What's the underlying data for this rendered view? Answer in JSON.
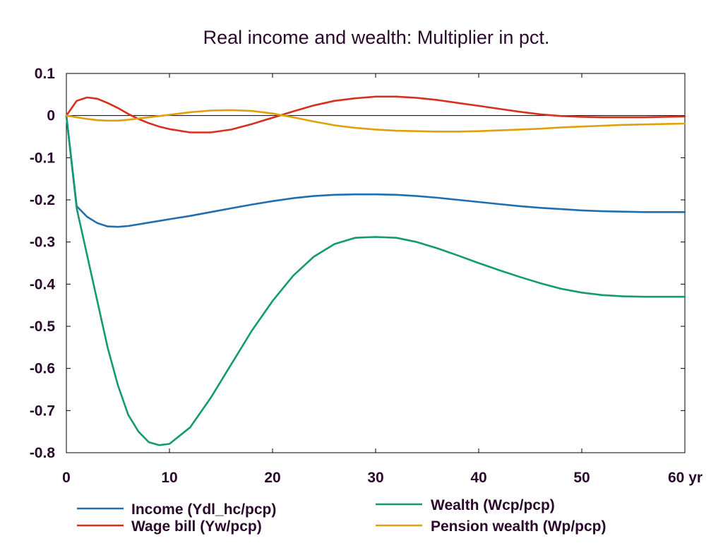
{
  "chart_data": {
    "type": "line",
    "title": "Real income and wealth: Multiplier in pct.",
    "xlabel": "",
    "ylabel": "",
    "x_unit_label": "yr",
    "xlim": [
      0,
      60
    ],
    "ylim": [
      -0.8,
      0.1
    ],
    "x_ticks": [
      0,
      10,
      20,
      30,
      40,
      50,
      60
    ],
    "x_tick_labels": [
      "0",
      "10",
      "20",
      "30",
      "40",
      "50",
      "60 yr"
    ],
    "y_ticks": [
      0.1,
      0,
      -0.1,
      -0.2,
      -0.3,
      -0.4,
      -0.5,
      -0.6,
      -0.7,
      -0.8
    ],
    "y_tick_labels": [
      "0.1",
      "0",
      "-0.1",
      "-0.2",
      "-0.3",
      "-0.4",
      "-0.5",
      "-0.6",
      "-0.7",
      "-0.8"
    ],
    "grid": false,
    "zero_line": true,
    "legend_position": "bottom",
    "x": [
      0,
      1,
      2,
      3,
      4,
      5,
      6,
      7,
      8,
      9,
      10,
      12,
      14,
      16,
      18,
      20,
      22,
      24,
      26,
      28,
      30,
      32,
      34,
      36,
      38,
      40,
      42,
      44,
      46,
      48,
      50,
      52,
      54,
      56,
      58,
      60
    ],
    "series": [
      {
        "name": "Income (Ydl_hc/pcp)",
        "color": "#1f6fb0",
        "values": [
          0,
          -0.215,
          -0.24,
          -0.255,
          -0.263,
          -0.264,
          -0.262,
          -0.258,
          -0.254,
          -0.25,
          -0.246,
          -0.238,
          -0.229,
          -0.22,
          -0.211,
          -0.203,
          -0.196,
          -0.191,
          -0.188,
          -0.187,
          -0.187,
          -0.188,
          -0.191,
          -0.195,
          -0.2,
          -0.205,
          -0.21,
          -0.215,
          -0.219,
          -0.222,
          -0.225,
          -0.227,
          -0.228,
          -0.229,
          -0.229,
          -0.229
        ]
      },
      {
        "name": "Wage bill (Yw/pcp)",
        "color": "#d7301f",
        "values": [
          0,
          0.035,
          0.043,
          0.04,
          0.03,
          0.018,
          0.004,
          -0.008,
          -0.018,
          -0.026,
          -0.032,
          -0.04,
          -0.04,
          -0.033,
          -0.02,
          -0.005,
          0.01,
          0.024,
          0.035,
          0.041,
          0.045,
          0.045,
          0.042,
          0.037,
          0.03,
          0.023,
          0.016,
          0.009,
          0.003,
          -0.001,
          -0.003,
          -0.004,
          -0.004,
          -0.004,
          -0.003,
          -0.002
        ]
      },
      {
        "name": "Wealth (Wcp/pcp)",
        "color": "#129a72",
        "values": [
          0,
          -0.22,
          -0.33,
          -0.44,
          -0.55,
          -0.64,
          -0.71,
          -0.75,
          -0.775,
          -0.782,
          -0.779,
          -0.74,
          -0.67,
          -0.59,
          -0.51,
          -0.44,
          -0.38,
          -0.335,
          -0.305,
          -0.29,
          -0.288,
          -0.29,
          -0.3,
          -0.315,
          -0.332,
          -0.35,
          -0.367,
          -0.383,
          -0.398,
          -0.411,
          -0.42,
          -0.426,
          -0.429,
          -0.43,
          -0.43,
          -0.43
        ]
      },
      {
        "name": "Pension wealth (Wp/pcp)",
        "color": "#e0a00c",
        "values": [
          0,
          -0.004,
          -0.008,
          -0.011,
          -0.012,
          -0.012,
          -0.01,
          -0.007,
          -0.004,
          -0.001,
          0.002,
          0.008,
          0.012,
          0.013,
          0.011,
          0.005,
          -0.004,
          -0.014,
          -0.023,
          -0.029,
          -0.033,
          -0.036,
          -0.037,
          -0.038,
          -0.038,
          -0.037,
          -0.035,
          -0.033,
          -0.031,
          -0.028,
          -0.026,
          -0.024,
          -0.022,
          -0.021,
          -0.02,
          -0.019
        ]
      }
    ]
  }
}
